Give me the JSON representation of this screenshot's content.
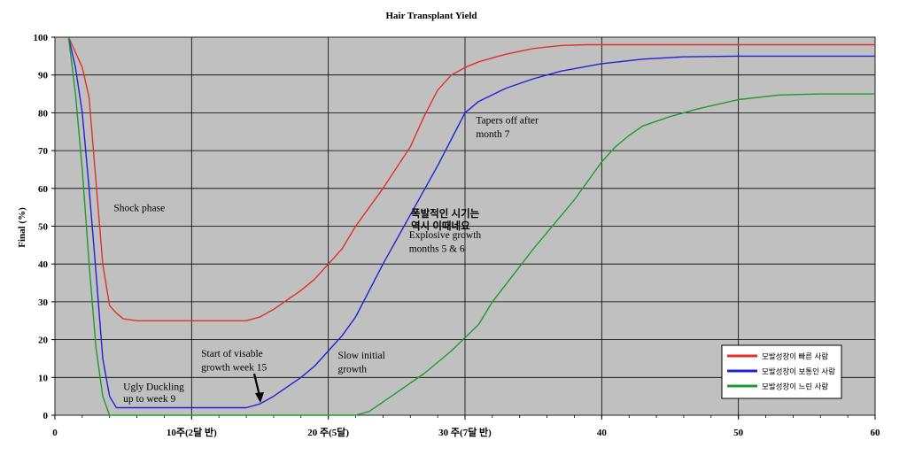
{
  "chart_data": {
    "type": "line",
    "title": "Hair Transplant Yield",
    "ylabel": "Final (%)",
    "xlabel": "",
    "xlim": [
      0,
      60
    ],
    "ylim": [
      0,
      100
    ],
    "grid": true,
    "legend_position": "bottom-right",
    "x_ticks": [
      {
        "value": 0,
        "label": "0"
      },
      {
        "value": 10,
        "label": "10주(2달 반)"
      },
      {
        "value": 20,
        "label": "20 주(5달)"
      },
      {
        "value": 30,
        "label": "30 주(7달 반)"
      },
      {
        "value": 40,
        "label": "40"
      },
      {
        "value": 50,
        "label": "50"
      },
      {
        "value": 60,
        "label": "60"
      }
    ],
    "y_ticks": [
      "0",
      "10",
      "20",
      "30",
      "40",
      "50",
      "60",
      "70",
      "80",
      "90",
      "100"
    ],
    "series": [
      {
        "name": "모발성장이 빠른 사람",
        "color": "#e0302a",
        "points": [
          [
            1,
            100
          ],
          [
            2,
            92
          ],
          [
            2.5,
            84
          ],
          [
            3,
            62
          ],
          [
            3.5,
            40
          ],
          [
            4,
            29
          ],
          [
            4.5,
            27
          ],
          [
            5,
            25.5
          ],
          [
            6,
            25
          ],
          [
            10,
            25
          ],
          [
            14,
            25
          ],
          [
            15,
            26
          ],
          [
            16,
            28
          ],
          [
            18,
            33
          ],
          [
            19,
            36
          ],
          [
            20,
            40
          ],
          [
            21,
            44
          ],
          [
            22,
            50
          ],
          [
            24,
            60
          ],
          [
            26,
            71
          ],
          [
            27,
            79
          ],
          [
            28,
            86
          ],
          [
            29,
            90
          ],
          [
            30,
            92
          ],
          [
            31,
            93.5
          ],
          [
            33,
            95.5
          ],
          [
            35,
            97
          ],
          [
            37,
            97.8
          ],
          [
            39,
            98
          ],
          [
            45,
            98
          ],
          [
            60,
            98
          ]
        ]
      },
      {
        "name": "모발성장이 보통인 사람",
        "color": "#2020d8",
        "points": [
          [
            1,
            100
          ],
          [
            1.5,
            92
          ],
          [
            2,
            80
          ],
          [
            2.5,
            60
          ],
          [
            3,
            38
          ],
          [
            3.5,
            15
          ],
          [
            4,
            5
          ],
          [
            4.5,
            2
          ],
          [
            5,
            2
          ],
          [
            10,
            2
          ],
          [
            14,
            2
          ],
          [
            15,
            3
          ],
          [
            16,
            5
          ],
          [
            18,
            10
          ],
          [
            19,
            13
          ],
          [
            20,
            17
          ],
          [
            21,
            21
          ],
          [
            22,
            26
          ],
          [
            24,
            40
          ],
          [
            26,
            53
          ],
          [
            28,
            66
          ],
          [
            30,
            80
          ],
          [
            31,
            83
          ],
          [
            33,
            86.5
          ],
          [
            35,
            89
          ],
          [
            37,
            91
          ],
          [
            40,
            93
          ],
          [
            43,
            94.2
          ],
          [
            46,
            94.8
          ],
          [
            50,
            95
          ],
          [
            60,
            95
          ]
        ]
      },
      {
        "name": "모발성장이 느린 사람",
        "color": "#1f9a2e",
        "points": [
          [
            1,
            100
          ],
          [
            1.5,
            85
          ],
          [
            2,
            65
          ],
          [
            2.5,
            40
          ],
          [
            3,
            18
          ],
          [
            3.5,
            5
          ],
          [
            4,
            0
          ],
          [
            10,
            0
          ],
          [
            20,
            0
          ],
          [
            22,
            0
          ],
          [
            23,
            1
          ],
          [
            25,
            6
          ],
          [
            27,
            11
          ],
          [
            29,
            17
          ],
          [
            31,
            24
          ],
          [
            32,
            30
          ],
          [
            35,
            44
          ],
          [
            38,
            57
          ],
          [
            40,
            67
          ],
          [
            41,
            71
          ],
          [
            42,
            74
          ],
          [
            43,
            76.5
          ],
          [
            45,
            79
          ],
          [
            47,
            81
          ],
          [
            50,
            83.5
          ],
          [
            53,
            84.7
          ],
          [
            56,
            85
          ],
          [
            60,
            85
          ]
        ]
      }
    ],
    "annotations": [
      {
        "text": "Shock phase",
        "x": 4.3,
        "y": 54
      },
      {
        "text": "Ugly Duckling",
        "x": 5,
        "y": 6.7
      },
      {
        "text": "up to week 9",
        "x": 5,
        "y": 3.5
      },
      {
        "text": "Start of visable",
        "x": 10.7,
        "y": 15.5
      },
      {
        "text": "growth week 15",
        "x": 10.7,
        "y": 11.8
      },
      {
        "text": "Slow initial",
        "x": 20.7,
        "y": 15
      },
      {
        "text": "growth",
        "x": 20.7,
        "y": 11.3
      },
      {
        "text": "Tapers off after",
        "x": 30.8,
        "y": 77.2
      },
      {
        "text": "month 7",
        "x": 30.8,
        "y": 73.5
      },
      {
        "text": "Explosive growth",
        "x": 25.9,
        "y": 46.8
      },
      {
        "text": "months 5 & 6",
        "x": 25.9,
        "y": 43.2
      }
    ],
    "korean_note": {
      "line1": "폭발적인 시기는",
      "line2": "역시 이때네요"
    }
  }
}
